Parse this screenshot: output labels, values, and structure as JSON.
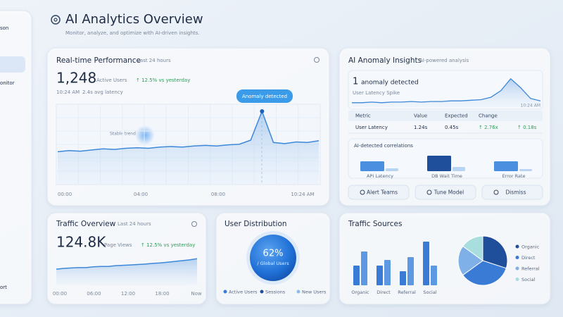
{
  "sidebar": {
    "items": [
      "son",
      "onitor",
      "ort"
    ]
  },
  "header": {
    "title": "AI Analytics Overview",
    "subtitle": "Monitor, analyze, and optimize with AI-driven insights."
  },
  "performance": {
    "title": "Real-time Performance",
    "period": "Last 24 hours",
    "value": "1,248",
    "value_label": "Active Users",
    "change": "↑ 12.5% vs yesterday",
    "time": "10:24 AM",
    "latency": "2.4s avg latency",
    "annotation": "Anomaly detected",
    "trend_note": "Stable trend",
    "x_labels": [
      "00:00",
      "04:00",
      "08:00",
      "10:24 AM"
    ],
    "values": [
      30,
      32,
      31,
      33,
      35,
      34,
      36,
      37,
      36,
      38,
      39,
      38,
      40,
      41,
      40,
      42,
      43,
      50,
      100,
      46,
      44,
      47,
      46,
      49
    ]
  },
  "anomaly": {
    "title": "AI Anomaly Insights",
    "subtitle": "AI-powered analysis",
    "count": "1",
    "count_label": "anomaly detected",
    "metric": "User Latency Spike",
    "time": "10:24 AM",
    "values": [
      5,
      5,
      6,
      5,
      6,
      6,
      7,
      6,
      7,
      7,
      8,
      8,
      9,
      10,
      14,
      25,
      45,
      30,
      12,
      8
    ],
    "table": {
      "header": [
        "Metric",
        "Value",
        "Expected",
        "Change",
        ""
      ],
      "rows": [
        [
          "User Latency",
          "1.24s",
          "0.45s",
          "↑ 2.76x",
          "↑ 0.18s"
        ]
      ]
    },
    "correlations": {
      "title": "AI-detected correlations",
      "categories": [
        "API Latency",
        "DB Wait Time",
        "Error Rate"
      ],
      "primary": [
        14,
        22,
        14
      ],
      "secondary": [
        4,
        6,
        3
      ],
      "colors": [
        "#4a8fe0",
        "#b9d3f2"
      ]
    },
    "actions": [
      "Alert Teams",
      "Tune Model",
      "Dismiss"
    ]
  },
  "traffic": {
    "title": "Traffic Overview",
    "period": "Last 24 hours",
    "value": "124.8K",
    "value_label": "Page Views",
    "change": "↑ 12.5% vs yesterday",
    "x_labels": [
      "00:00",
      "06:00",
      "12:00",
      "18:00",
      "Now"
    ],
    "values": [
      18,
      20,
      21,
      22,
      22,
      24,
      25,
      25,
      27,
      28,
      29,
      30,
      31,
      33,
      34,
      36,
      38,
      40,
      42,
      45
    ]
  },
  "distribution": {
    "title": "User Distribution",
    "value": "62%",
    "label": "/ Global Users",
    "legend": [
      "Active Users",
      "Sessions",
      "New Users"
    ],
    "colors": [
      "#3a7bd5",
      "#1f4e9a",
      "#8fbbe9"
    ]
  },
  "sources": {
    "title": "Traffic Sources",
    "categories": [
      "Organic",
      "Direct",
      "Referral",
      "Social"
    ],
    "series": [
      {
        "color": "#3a7bd5",
        "values": [
          28,
          28,
          20,
          62
        ]
      },
      {
        "color": "#5d98e3",
        "values": [
          48,
          36,
          40,
          28
        ]
      }
    ],
    "pie": {
      "labels": [
        "Organic",
        "Direct",
        "Referral",
        "Social"
      ],
      "values": [
        30,
        35,
        20,
        15
      ],
      "colors": [
        "#1f4e9a",
        "#3a7bd5",
        "#7fb0e8",
        "#a8dede"
      ]
    }
  }
}
